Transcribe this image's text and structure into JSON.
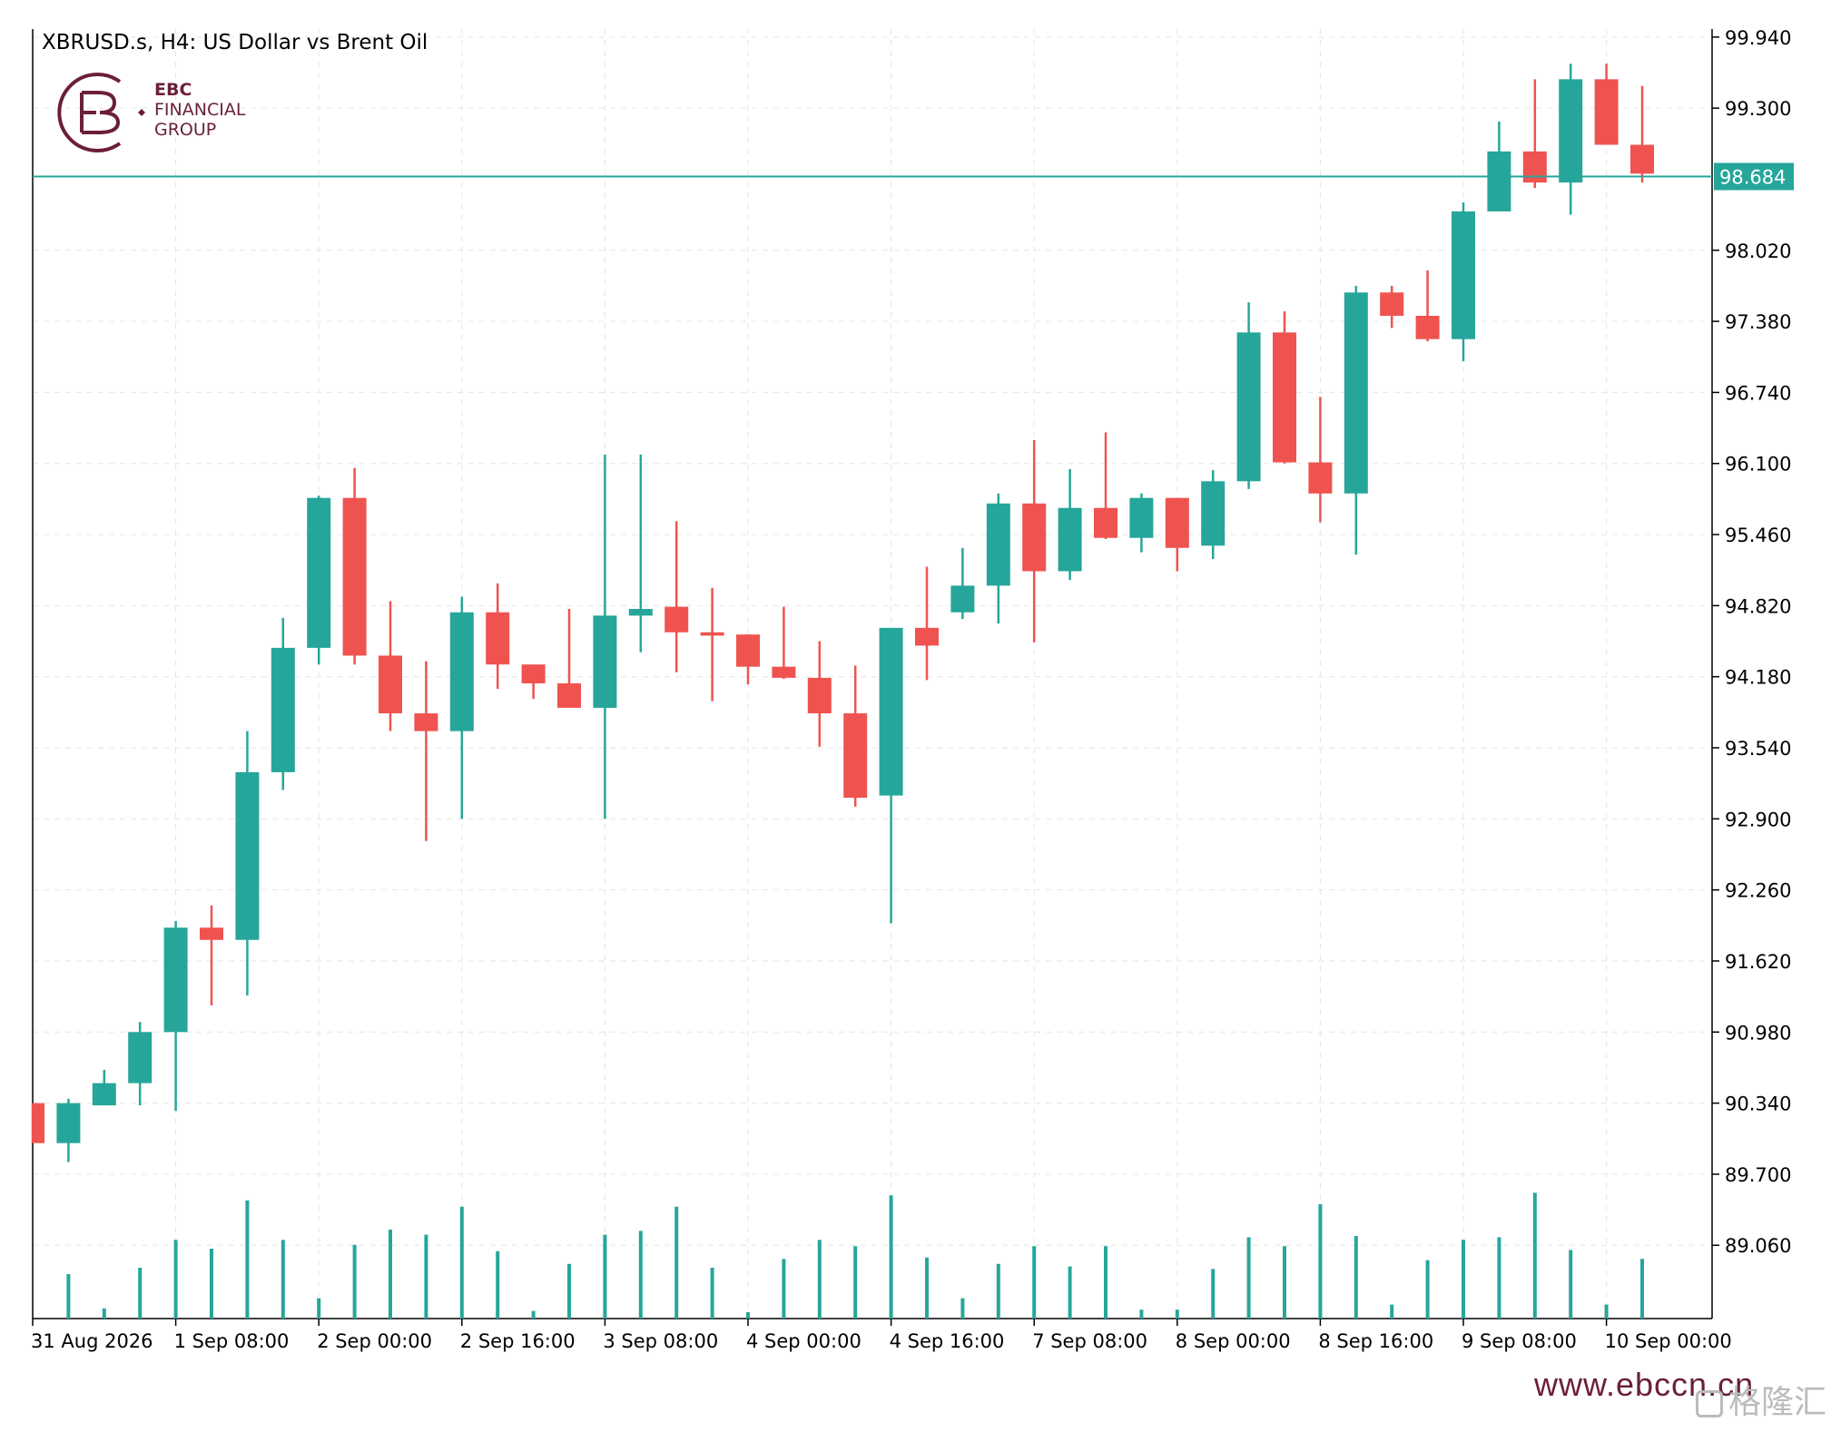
{
  "header": {
    "title": "XBRUSD.s, H4:  US Dollar vs Brent Oil"
  },
  "logo": {
    "line1": "EBC",
    "line2": "FINANCIAL",
    "line3": "GROUP",
    "color": "#6b1f3a"
  },
  "footer": {
    "website": "www.ebccn.cn",
    "watermark": "格隆汇"
  },
  "colors": {
    "bull": "#26a69a",
    "bear": "#ef5350",
    "grid": "#e6e6e6",
    "axis": "#000000",
    "price_line": "#26a69a"
  },
  "chart_data": {
    "type": "candlestick",
    "symbol": "XBRUSD.s",
    "timeframe": "H4",
    "current_price": 98.684,
    "current_price_label": "98.684",
    "ylim": [
      88.4,
      100.0
    ],
    "y_ticks": [
      "99.940",
      "99.300",
      "98.020",
      "97.380",
      "96.740",
      "96.100",
      "95.460",
      "94.820",
      "94.180",
      "93.540",
      "92.900",
      "92.260",
      "91.620",
      "90.980",
      "90.340",
      "89.700",
      "89.060"
    ],
    "x_tick_labels": [
      {
        "index": 0,
        "label": "31 Aug 2026"
      },
      {
        "index": 4,
        "label": "1 Sep 08:00"
      },
      {
        "index": 8,
        "label": "2 Sep 00:00"
      },
      {
        "index": 12,
        "label": "2 Sep 16:00"
      },
      {
        "index": 16,
        "label": "3 Sep 08:00"
      },
      {
        "index": 20,
        "label": "4 Sep 00:00"
      },
      {
        "index": 24,
        "label": "4 Sep 16:00"
      },
      {
        "index": 28,
        "label": "7 Sep 08:00"
      },
      {
        "index": 32,
        "label": "8 Sep 00:00"
      },
      {
        "index": 36,
        "label": "8 Sep 16:00"
      },
      {
        "index": 40,
        "label": "9 Sep 08:00"
      },
      {
        "index": 44,
        "label": "10 Sep 00:00"
      }
    ],
    "grid": true,
    "candles": [
      {
        "o": 90.34,
        "h": 90.34,
        "l": 89.98,
        "c": 89.98
      },
      {
        "o": 89.98,
        "h": 90.38,
        "l": 89.81,
        "c": 90.34
      },
      {
        "o": 90.32,
        "h": 90.64,
        "l": 90.32,
        "c": 90.52
      },
      {
        "o": 90.52,
        "h": 91.07,
        "l": 90.32,
        "c": 90.98
      },
      {
        "o": 90.98,
        "h": 91.98,
        "l": 90.27,
        "c": 91.92
      },
      {
        "o": 91.92,
        "h": 92.12,
        "l": 91.22,
        "c": 91.81
      },
      {
        "o": 91.81,
        "h": 93.69,
        "l": 91.31,
        "c": 93.32
      },
      {
        "o": 93.32,
        "h": 94.71,
        "l": 93.16,
        "c": 94.44
      },
      {
        "o": 94.44,
        "h": 95.81,
        "l": 94.29,
        "c": 95.79
      },
      {
        "o": 95.79,
        "h": 96.06,
        "l": 94.29,
        "c": 94.37
      },
      {
        "o": 94.37,
        "h": 94.86,
        "l": 93.69,
        "c": 93.85
      },
      {
        "o": 93.85,
        "h": 94.32,
        "l": 92.7,
        "c": 93.69
      },
      {
        "o": 93.69,
        "h": 94.9,
        "l": 92.9,
        "c": 94.76
      },
      {
        "o": 94.76,
        "h": 95.02,
        "l": 94.07,
        "c": 94.29
      },
      {
        "o": 94.29,
        "h": 94.29,
        "l": 93.98,
        "c": 94.12
      },
      {
        "o": 94.12,
        "h": 94.79,
        "l": 93.9,
        "c": 93.9
      },
      {
        "o": 93.9,
        "h": 96.18,
        "l": 92.9,
        "c": 94.73
      },
      {
        "o": 94.73,
        "h": 96.18,
        "l": 94.4,
        "c": 94.79
      },
      {
        "o": 94.81,
        "h": 95.58,
        "l": 94.22,
        "c": 94.58
      },
      {
        "o": 94.58,
        "h": 94.98,
        "l": 93.96,
        "c": 94.55
      },
      {
        "o": 94.56,
        "h": 94.56,
        "l": 94.11,
        "c": 94.27
      },
      {
        "o": 94.27,
        "h": 94.81,
        "l": 94.16,
        "c": 94.17
      },
      {
        "o": 94.17,
        "h": 94.5,
        "l": 93.55,
        "c": 93.85
      },
      {
        "o": 93.85,
        "h": 94.28,
        "l": 93.01,
        "c": 93.09
      },
      {
        "o": 93.11,
        "h": 94.62,
        "l": 91.96,
        "c": 94.62
      },
      {
        "o": 94.62,
        "h": 95.17,
        "l": 94.15,
        "c": 94.46
      },
      {
        "o": 94.76,
        "h": 95.34,
        "l": 94.7,
        "c": 95.0
      },
      {
        "o": 95.0,
        "h": 95.83,
        "l": 94.66,
        "c": 95.74
      },
      {
        "o": 95.74,
        "h": 96.31,
        "l": 94.49,
        "c": 95.13
      },
      {
        "o": 95.13,
        "h": 96.05,
        "l": 95.05,
        "c": 95.7
      },
      {
        "o": 95.7,
        "h": 96.38,
        "l": 95.42,
        "c": 95.43
      },
      {
        "o": 95.43,
        "h": 95.83,
        "l": 95.3,
        "c": 95.79
      },
      {
        "o": 95.79,
        "h": 95.79,
        "l": 95.13,
        "c": 95.34
      },
      {
        "o": 95.36,
        "h": 96.04,
        "l": 95.24,
        "c": 95.94
      },
      {
        "o": 95.94,
        "h": 97.55,
        "l": 95.87,
        "c": 97.28
      },
      {
        "o": 97.28,
        "h": 97.47,
        "l": 96.1,
        "c": 96.11
      },
      {
        "o": 96.11,
        "h": 96.7,
        "l": 95.57,
        "c": 95.83
      },
      {
        "o": 95.83,
        "h": 97.7,
        "l": 95.28,
        "c": 97.64
      },
      {
        "o": 97.64,
        "h": 97.7,
        "l": 97.32,
        "c": 97.43
      },
      {
        "o": 97.43,
        "h": 97.84,
        "l": 97.2,
        "c": 97.22
      },
      {
        "o": 97.22,
        "h": 98.45,
        "l": 97.02,
        "c": 98.37
      },
      {
        "o": 98.37,
        "h": 99.18,
        "l": 98.37,
        "c": 98.91
      },
      {
        "o": 98.91,
        "h": 99.56,
        "l": 98.58,
        "c": 98.63
      },
      {
        "o": 98.63,
        "h": 99.7,
        "l": 98.34,
        "c": 99.56
      },
      {
        "o": 99.56,
        "h": 99.7,
        "l": 98.97,
        "c": 98.97
      },
      {
        "o": 98.97,
        "h": 99.5,
        "l": 98.63,
        "c": 98.71
      }
    ],
    "volume": [
      0,
      0.35,
      0.08,
      0.4,
      0.62,
      0.55,
      0.93,
      0.62,
      0.16,
      0.58,
      0.7,
      0.66,
      0.88,
      0.53,
      0.06,
      0.43,
      0.66,
      0.69,
      0.88,
      0.4,
      0.05,
      0.47,
      0.62,
      0.57,
      0.97,
      0.48,
      0.16,
      0.43,
      0.57,
      0.41,
      0.57,
      0.07,
      0.07,
      0.39,
      0.64,
      0.57,
      0.9,
      0.65,
      0.11,
      0.46,
      0.62,
      0.64,
      0.99,
      0.54,
      0.11,
      0.47
    ]
  }
}
